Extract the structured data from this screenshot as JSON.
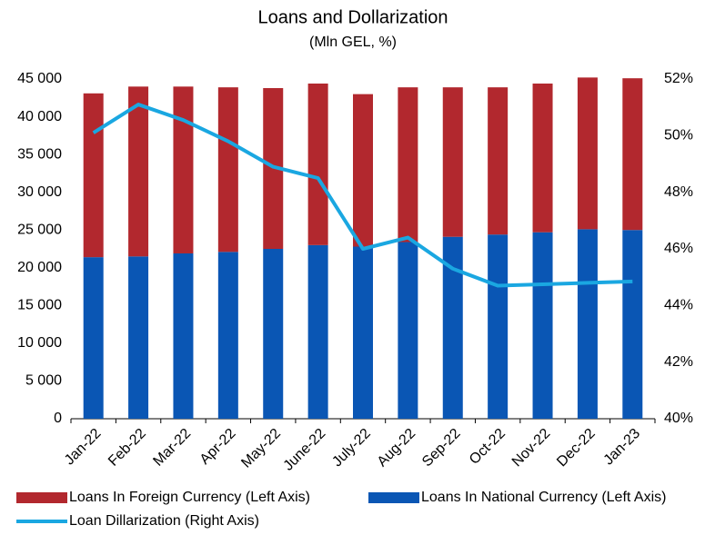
{
  "chart_data": {
    "type": "bar",
    "title": "Loans and Dollarization",
    "subtitle": "(Mln GEL, %)",
    "categories": [
      "Jan-22",
      "Feb-22",
      "Mar-22",
      "Apr-22",
      "May-22",
      "June-22",
      "July-22",
      "Aug-22",
      "Sep-22",
      "Oct-22",
      "Nov-22",
      "Dec-22",
      "Jan-23"
    ],
    "series": [
      {
        "name": "Loans In Foreign Currency (Left Axis)",
        "type": "bar",
        "color": "#b2282e",
        "values": [
          21700,
          22500,
          22100,
          21800,
          21300,
          21400,
          20200,
          20500,
          19800,
          19500,
          19700,
          20100,
          20100
        ]
      },
      {
        "name": "Loans In National Currency (Left Axis)",
        "type": "bar",
        "color": "#0a56b4",
        "values": [
          21400,
          21500,
          21900,
          22100,
          22500,
          23000,
          22800,
          23400,
          24100,
          24400,
          24700,
          25100,
          25000
        ]
      },
      {
        "name": "Loan Dillarization (Right Axis)",
        "type": "line",
        "axis": "y2",
        "color": "#1aa7e1",
        "values": [
          50.1,
          51.1,
          50.55,
          49.8,
          48.9,
          48.5,
          46.0,
          46.4,
          45.3,
          44.7,
          44.75,
          44.8,
          44.85
        ]
      }
    ],
    "stacked": true,
    "ylim": [
      0,
      45000
    ],
    "yticks": [
      0,
      {
        "value": 5000,
        "label": "5 000"
      },
      {
        "value": 10000,
        "label": "10 000"
      },
      {
        "value": 15000,
        "label": "15 000"
      },
      {
        "value": 20000,
        "label": "20 000"
      },
      {
        "value": 25000,
        "label": "25 000"
      },
      {
        "value": 30000,
        "label": "30 000"
      },
      {
        "value": 35000,
        "label": "35 000"
      },
      {
        "value": 40000,
        "label": "40 000"
      },
      {
        "value": 45000,
        "label": "45 000"
      }
    ],
    "y2lim": [
      40,
      52
    ],
    "y2ticks": [
      {
        "value": 40,
        "label": "40%"
      },
      {
        "value": 42,
        "label": "42%"
      },
      {
        "value": 44,
        "label": "44%"
      },
      {
        "value": 46,
        "label": "46%"
      },
      {
        "value": 48,
        "label": "48%"
      },
      {
        "value": 50,
        "label": "50%"
      },
      {
        "value": 52,
        "label": "52%"
      }
    ],
    "grid": false
  }
}
